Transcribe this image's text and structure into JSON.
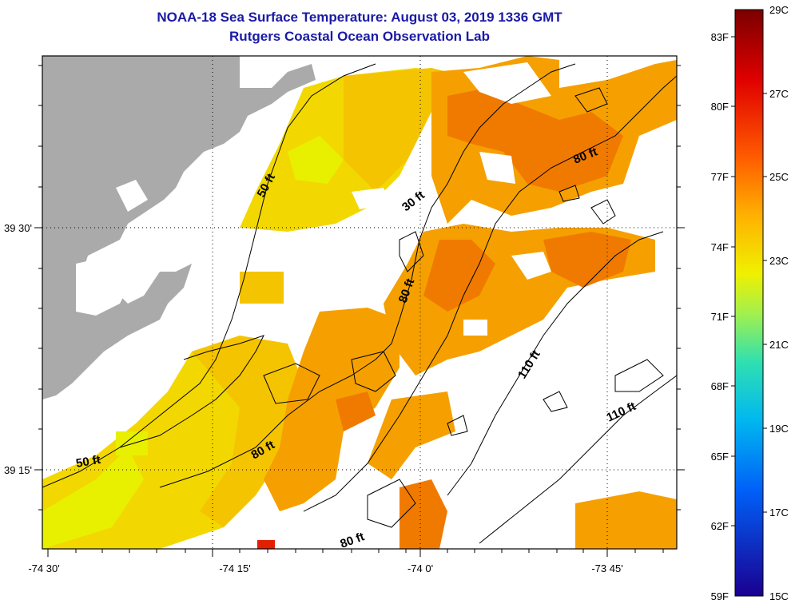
{
  "title": "NOAA-18 Sea Surface Temperature:  August 03, 2019 1336 GMT",
  "subtitle": "Rutgers Coastal Ocean Observation Lab",
  "axes": {
    "x_ticks": [
      "-74 30'",
      "-74 15'",
      "-74 0'",
      "-73 45'"
    ],
    "y_ticks": [
      "39 30'",
      "39 15'"
    ]
  },
  "contour_labels": [
    "50 ft",
    "50 ft",
    "30 ft",
    "80 ft",
    "80 ft",
    "80 ft",
    "80 ft",
    "110 ft",
    "110 ft"
  ],
  "colorbar": {
    "fahrenheit": [
      "83F",
      "80F",
      "77F",
      "74F",
      "71F",
      "68F",
      "65F",
      "62F",
      "59F"
    ],
    "celsius": [
      "29C",
      "27C",
      "25C",
      "23C",
      "21C",
      "19C",
      "17C",
      "15C"
    ]
  },
  "colors": {
    "title": "#1a1aa6",
    "land": "#aaaaaa",
    "sst_yellow": "#f2e100",
    "sst_orange": "#f5a100",
    "sst_deep_orange": "#f07800"
  }
}
